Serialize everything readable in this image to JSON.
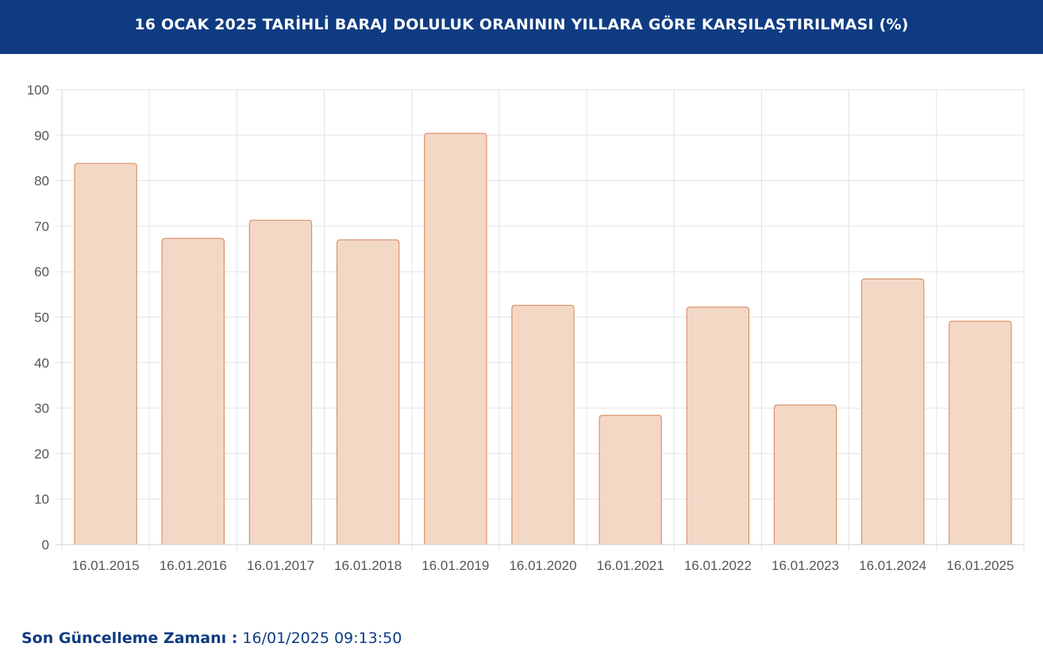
{
  "header": {
    "title": "16 OCAK 2025 TARİHLİ BARAJ DOLULUK ORANININ YILLARA GÖRE KARŞILAŞTIRILMASI (%)"
  },
  "footer": {
    "label": "Son Güncelleme Zamanı :",
    "value": "16/01/2025 09:13:50"
  },
  "colors": {
    "header_bg": "#0f3b82",
    "bar_fill": "#f3d8c6",
    "bar_stroke": "#d9956a",
    "grid": "#e3e3e3",
    "tick_text": "#555555"
  },
  "chart_data": {
    "type": "bar",
    "title": "16 OCAK 2025 TARİHLİ BARAJ DOLULUK ORANININ YILLARA GÖRE KARŞILAŞTIRILMASI (%)",
    "xlabel": "",
    "ylabel": "",
    "ylim": [
      0,
      100
    ],
    "yticks": [
      0,
      10,
      20,
      30,
      40,
      50,
      60,
      70,
      80,
      90,
      100
    ],
    "grid": true,
    "legend": "none",
    "categories": [
      "16.01.2015",
      "16.01.2016",
      "16.01.2017",
      "16.01.2018",
      "16.01.2019",
      "16.01.2020",
      "16.01.2021",
      "16.01.2022",
      "16.01.2023",
      "16.01.2024",
      "16.01.2025"
    ],
    "values": [
      83.8,
      67.3,
      71.3,
      67.0,
      90.4,
      52.6,
      28.4,
      52.2,
      30.7,
      58.4,
      49.1
    ]
  }
}
